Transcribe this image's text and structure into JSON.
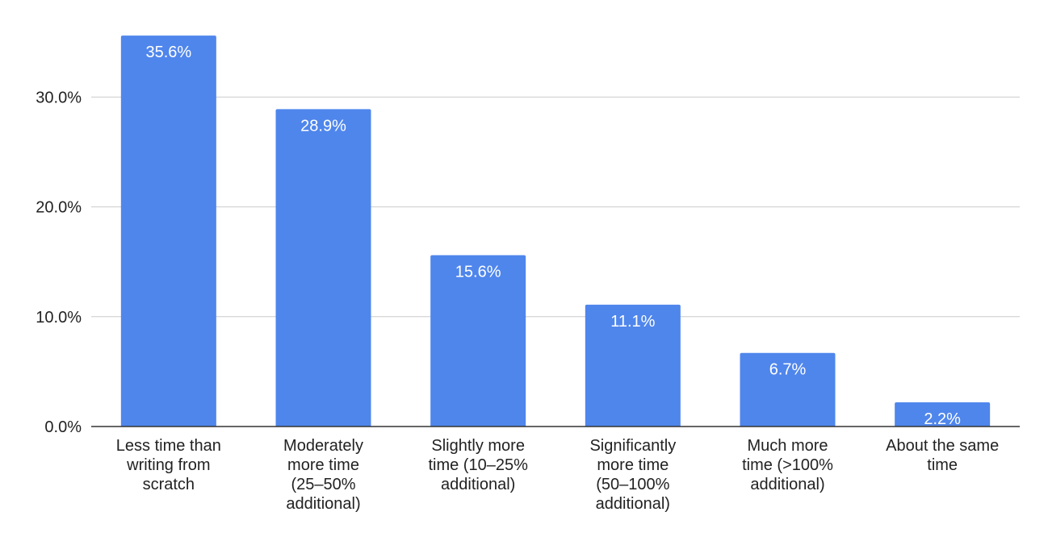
{
  "chart_data": {
    "type": "bar",
    "title": "",
    "xlabel": "",
    "ylabel": "",
    "ylim": [
      0,
      37
    ],
    "y_ticks": [
      0,
      10,
      20,
      30
    ],
    "y_tick_labels": [
      "0.0%",
      "10.0%",
      "20.0%",
      "30.0%"
    ],
    "categories": [
      [
        "Less time than",
        "writing from",
        "scratch"
      ],
      [
        "Moderately",
        "more time",
        "(25–50%",
        "additional)"
      ],
      [
        "Slightly more",
        "time (10–25%",
        "additional)"
      ],
      [
        "Significantly",
        "more time",
        "(50–100%",
        "additional)"
      ],
      [
        "Much more",
        "time (>100%",
        "additional)"
      ],
      [
        "About the same",
        "time"
      ]
    ],
    "values": [
      35.6,
      28.9,
      15.6,
      11.1,
      6.7,
      2.2
    ],
    "data_labels": [
      "35.6%",
      "28.9%",
      "15.6%",
      "11.1%",
      "6.7%",
      "2.2%"
    ],
    "grid": true,
    "legend": "none",
    "colors": {
      "bar": "#4f86ec",
      "grid": "#cccccc",
      "axis": "#333333",
      "text": "#222222",
      "bar_label": "#ffffff"
    }
  }
}
